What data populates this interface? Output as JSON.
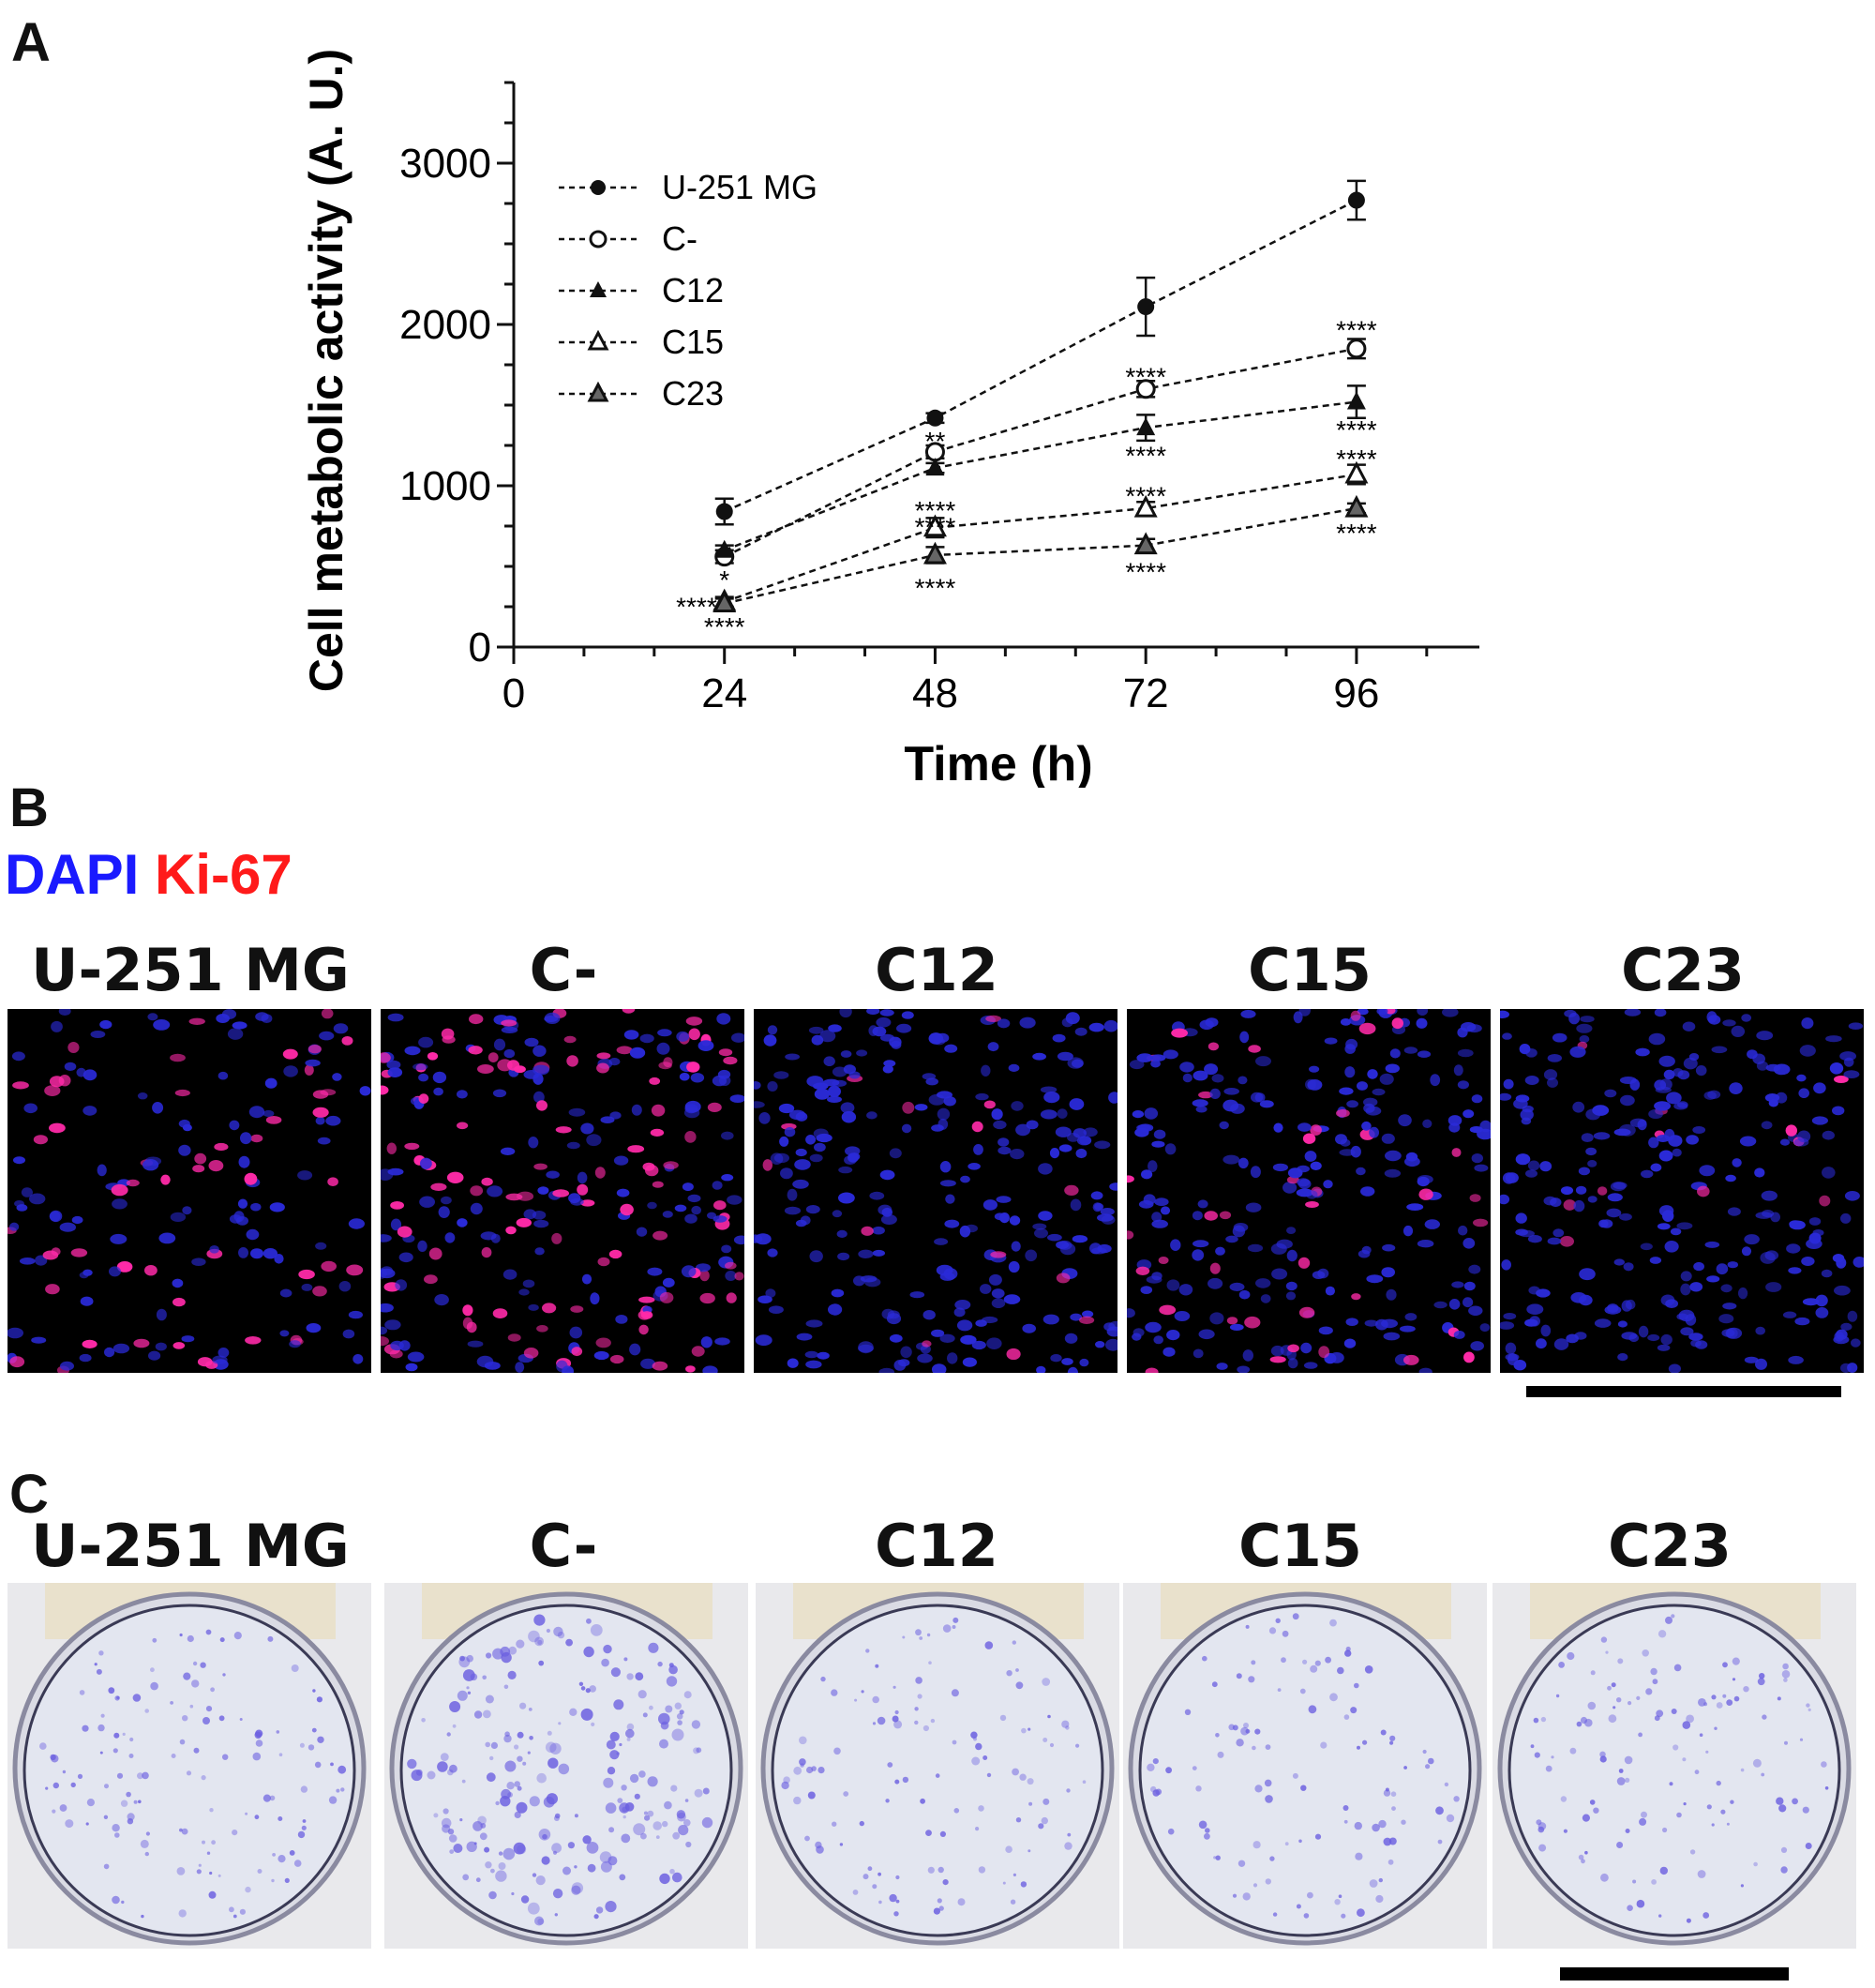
{
  "panels": {
    "a": "A",
    "b": "B",
    "c": "C"
  },
  "chart_data": {
    "type": "line",
    "xlabel": "Time (h)",
    "ylabel": "Cell metabolic activity (A. U.)",
    "x": [
      24,
      48,
      72,
      96
    ],
    "xlim": [
      0,
      110
    ],
    "ylim": [
      0,
      3500
    ],
    "xticks": [
      "0",
      "24",
      "48",
      "72",
      "96"
    ],
    "yticks": [
      "0",
      "1000",
      "2000",
      "3000"
    ],
    "legend_position": "top-left",
    "grid": false,
    "line_style": "dashed",
    "series": [
      {
        "name": "U-251 MG",
        "marker": "filled-circle",
        "values": [
          840,
          1420,
          2110,
          2770
        ],
        "errors": [
          80,
          30,
          180,
          120
        ]
      },
      {
        "name": "C-",
        "marker": "open-circle",
        "values": [
          560,
          1210,
          1600,
          1850
        ],
        "errors": [
          40,
          40,
          50,
          60
        ]
      },
      {
        "name": "C12",
        "marker": "filled-triangle",
        "values": [
          600,
          1110,
          1360,
          1520
        ],
        "errors": [
          30,
          30,
          80,
          100
        ]
      },
      {
        "name": "C15",
        "marker": "open-triangle",
        "values": [
          280,
          740,
          860,
          1070
        ],
        "errors": [
          30,
          60,
          40,
          60
        ]
      },
      {
        "name": "C23",
        "marker": "grey-triangle",
        "values": [
          270,
          570,
          630,
          860
        ],
        "errors": [
          30,
          50,
          40,
          30
        ]
      }
    ],
    "annotations": [
      {
        "text": "*",
        "x": 24,
        "y": 430
      },
      {
        "text": "****",
        "x": 24,
        "y": 265,
        "side": "left"
      },
      {
        "text": "****",
        "x": 24,
        "y": 140
      },
      {
        "text": "**",
        "x": 48,
        "y": 1290
      },
      {
        "text": "****",
        "x": 48,
        "y": 860
      },
      {
        "text": "****",
        "x": 48,
        "y": 760
      },
      {
        "text": "****",
        "x": 48,
        "y": 380
      },
      {
        "text": "****",
        "x": 72,
        "y": 1690
      },
      {
        "text": "****",
        "x": 72,
        "y": 1200
      },
      {
        "text": "****",
        "x": 72,
        "y": 950
      },
      {
        "text": "****",
        "x": 72,
        "y": 480
      },
      {
        "text": "****",
        "x": 96,
        "y": 1980
      },
      {
        "text": "****",
        "x": 96,
        "y": 1360
      },
      {
        "text": "****",
        "x": 96,
        "y": 1180
      },
      {
        "text": "****",
        "x": 96,
        "y": 720
      }
    ]
  },
  "stain_legend": {
    "dapi": "DAPI",
    "ki67": "Ki-67",
    "dapi_color": "#1a1aff",
    "ki67_color": "#ff1a1a"
  },
  "samples": [
    "U-251 MG",
    "C-",
    "C12",
    "C15",
    "C23"
  ],
  "micrographs": {
    "nucleus_color": "#2a2ad8",
    "ki67_color": "#ff2aa8",
    "ki67_fraction": [
      0.35,
      0.45,
      0.06,
      0.1,
      0.06
    ]
  },
  "colony_dishes": {
    "colony_color": "#6a5ee0",
    "colony_density": [
      0.45,
      1.0,
      0.35,
      0.3,
      0.4
    ]
  }
}
